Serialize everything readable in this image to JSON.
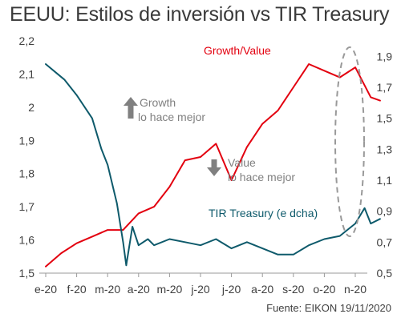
{
  "title": "EEUU: Estilos de inversión vs TIR Treasury",
  "source": "Fuente: EIKON 19/11/2020",
  "chart_data": {
    "type": "line",
    "title": "EEUU: Estilos de inversión vs TIR Treasury",
    "x_tick_labels": [
      "e-20",
      "f-20",
      "m-20",
      "a-20",
      "m-20",
      "j-20",
      "j-20",
      "a-20",
      "s-20",
      "o-20",
      "n-20"
    ],
    "y_left": {
      "ticks": [
        "1,5",
        "1,6",
        "1,7",
        "1,8",
        "1,9",
        "2",
        "2,1",
        "2,2"
      ],
      "range": [
        1.5,
        2.2
      ]
    },
    "y_right": {
      "ticks": [
        "0,5",
        "0,7",
        "0,9",
        "1,1",
        "1,3",
        "1,5",
        "1,7",
        "1,9"
      ],
      "range": [
        0.5,
        2.0
      ]
    },
    "grid": false,
    "colors": {
      "growth_value": "#e3000f",
      "tir": "#0e5a6b",
      "annotation": "#808080",
      "ellipse": "#999999"
    },
    "series": [
      {
        "name": "Growth/Value",
        "axis": "left",
        "color": "#e3000f",
        "x": [
          0,
          0.5,
          1,
          1.5,
          2,
          2.5,
          3,
          3.5,
          4,
          4.5,
          5,
          5.5,
          6,
          6.5,
          7,
          7.5,
          8,
          8.5,
          9,
          9.5,
          10,
          10.5,
          10.8
        ],
        "y": [
          1.52,
          1.56,
          1.59,
          1.61,
          1.63,
          1.63,
          1.68,
          1.7,
          1.76,
          1.84,
          1.85,
          1.89,
          1.78,
          1.88,
          1.95,
          1.99,
          2.06,
          2.13,
          2.11,
          2.09,
          2.12,
          2.03,
          2.02
        ]
      },
      {
        "name": "TIR Treasury (e dcha)",
        "axis": "right",
        "color": "#0e5a6b",
        "x": [
          0,
          0.3,
          0.6,
          1,
          1.5,
          1.8,
          2,
          2.3,
          2.5,
          2.6,
          2.8,
          3,
          3.3,
          3.5,
          4,
          4.5,
          5,
          5.5,
          6,
          6.5,
          7,
          7.5,
          8,
          8.5,
          9,
          9.5,
          10,
          10.3,
          10.5,
          10.8
        ],
        "y": [
          1.85,
          1.8,
          1.75,
          1.65,
          1.5,
          1.3,
          1.2,
          0.95,
          0.7,
          0.55,
          0.8,
          0.68,
          0.72,
          0.68,
          0.72,
          0.7,
          0.68,
          0.72,
          0.66,
          0.7,
          0.66,
          0.62,
          0.62,
          0.68,
          0.72,
          0.74,
          0.82,
          0.92,
          0.82,
          0.85
        ]
      }
    ],
    "annotations": {
      "growth": {
        "line1": "Growth",
        "line2": "lo hace mejor"
      },
      "value": {
        "line1": "Value",
        "line2": "lo hace mejor"
      }
    }
  }
}
